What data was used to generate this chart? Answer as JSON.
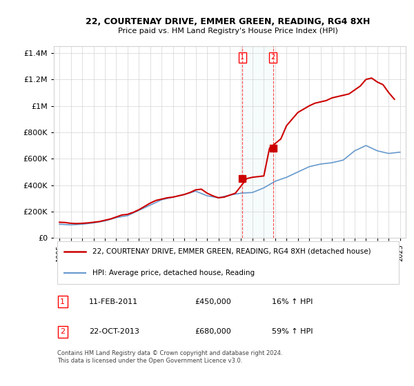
{
  "title": "22, COURTENAY DRIVE, EMMER GREEN, READING, RG4 8XH",
  "subtitle": "Price paid vs. HM Land Registry's House Price Index (HPI)",
  "legend_line1": "22, COURTENAY DRIVE, EMMER GREEN, READING, RG4 8XH (detached house)",
  "legend_line2": "HPI: Average price, detached house, Reading",
  "footnote": "Contains HM Land Registry data © Crown copyright and database right 2024.\nThis data is licensed under the Open Government Licence v3.0.",
  "sale1_label": "1",
  "sale1_date": "11-FEB-2011",
  "sale1_price": "£450,000",
  "sale1_hpi": "16% ↑ HPI",
  "sale2_label": "2",
  "sale2_date": "22-OCT-2013",
  "sale2_price": "£680,000",
  "sale2_hpi": "59% ↑ HPI",
  "red_color": "#cc0000",
  "blue_color": "#6699cc",
  "hpi_years": [
    1995,
    1996,
    1997,
    1998,
    1999,
    2000,
    2001,
    2002,
    2003,
    2004,
    2005,
    2006,
    2007,
    2008,
    2009,
    2010,
    2011,
    2012,
    2013,
    2014,
    2015,
    2016,
    2017,
    2018,
    2019,
    2020,
    2021,
    2022,
    2023,
    2024,
    2025
  ],
  "hpi_values": [
    105000,
    100000,
    105000,
    115000,
    130000,
    155000,
    170000,
    210000,
    250000,
    290000,
    310000,
    330000,
    355000,
    320000,
    305000,
    325000,
    340000,
    345000,
    380000,
    430000,
    460000,
    500000,
    540000,
    560000,
    570000,
    590000,
    660000,
    700000,
    660000,
    640000,
    650000
  ],
  "house_years": [
    1995.0,
    1995.5,
    1996.0,
    1996.5,
    1997.0,
    1997.5,
    1998.0,
    1998.5,
    1999.0,
    1999.5,
    2000.0,
    2000.5,
    2001.0,
    2001.5,
    2002.0,
    2002.5,
    2003.0,
    2003.5,
    2004.0,
    2004.5,
    2005.0,
    2005.5,
    2006.0,
    2006.5,
    2007.0,
    2007.5,
    2008.0,
    2008.5,
    2009.0,
    2009.5,
    2010.0,
    2010.5,
    2011.5,
    2012.0,
    2012.5,
    2013.0,
    2013.5,
    2014.5,
    2015.0,
    2015.5,
    2016.0,
    2016.5,
    2017.0,
    2017.5,
    2018.0,
    2018.5,
    2019.0,
    2019.5,
    2020.0,
    2020.5,
    2021.0,
    2021.5,
    2022.0,
    2022.5,
    2023.0,
    2023.5,
    2024.0,
    2024.5
  ],
  "house_values": [
    120000,
    118000,
    112000,
    110000,
    112000,
    115000,
    120000,
    125000,
    135000,
    145000,
    160000,
    175000,
    180000,
    195000,
    215000,
    240000,
    265000,
    285000,
    295000,
    305000,
    310000,
    320000,
    330000,
    345000,
    365000,
    370000,
    340000,
    320000,
    305000,
    310000,
    325000,
    340000,
    450000,
    460000,
    465000,
    470000,
    680000,
    750000,
    850000,
    900000,
    950000,
    975000,
    1000000,
    1020000,
    1030000,
    1040000,
    1060000,
    1070000,
    1080000,
    1090000,
    1120000,
    1150000,
    1200000,
    1210000,
    1180000,
    1160000,
    1100000,
    1050000
  ],
  "sale1_x": 2011.1,
  "sale1_y": 450000,
  "sale2_x": 2013.8,
  "sale2_y": 680000,
  "ylim": [
    0,
    1450000
  ],
  "xlim_start": 1994.5,
  "xlim_end": 2025.5,
  "xticks": [
    1995,
    1996,
    1997,
    1998,
    1999,
    2000,
    2001,
    2002,
    2003,
    2004,
    2005,
    2006,
    2007,
    2008,
    2009,
    2010,
    2011,
    2012,
    2013,
    2014,
    2015,
    2016,
    2017,
    2018,
    2019,
    2020,
    2021,
    2022,
    2023,
    2024,
    2025
  ],
  "yticks": [
    0,
    200000,
    400000,
    600000,
    800000,
    1000000,
    1200000,
    1400000
  ],
  "ytick_labels": [
    "£0",
    "£200K",
    "£400K",
    "£600K",
    "£800K",
    "£1M",
    "£1.2M",
    "£1.4M"
  ]
}
